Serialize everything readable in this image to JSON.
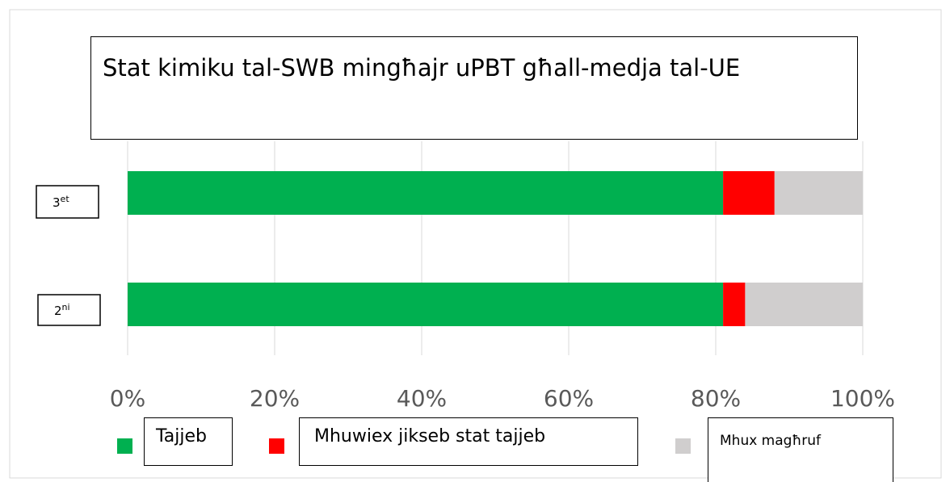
{
  "chart_data": {
    "type": "stacked-bar-horizontal",
    "title": "Stat kimiku tal-SWB mingħajr uPBT għall-medja tal-UE",
    "categories": [
      "3et",
      "2ni"
    ],
    "series": [
      {
        "name": "Tajjeb",
        "color": "#00b050",
        "values": [
          81,
          81
        ]
      },
      {
        "name": "Mhuwiex jikseb stat tajjeb",
        "color": "#ff0000",
        "values": [
          7,
          3
        ]
      },
      {
        "name": "Mhux magħruf",
        "color": "#d0cece",
        "values": [
          12,
          16
        ]
      }
    ],
    "xlim": [
      0,
      100
    ],
    "xticks": [
      {
        "value": 0,
        "label": "0%"
      },
      {
        "value": 20,
        "label": "20%"
      },
      {
        "value": 40,
        "label": "40%"
      },
      {
        "value": 60,
        "label": "60%"
      },
      {
        "value": 80,
        "label": "80%"
      },
      {
        "value": 100,
        "label": "100%"
      }
    ],
    "grid": true
  }
}
